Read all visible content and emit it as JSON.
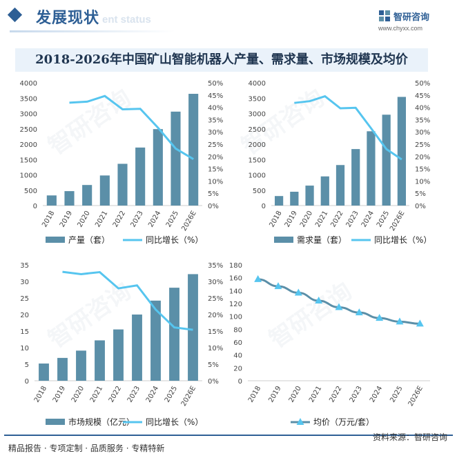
{
  "header": {
    "section_title": "发展现状",
    "section_subtitle": "ent status"
  },
  "brand": {
    "name": "智研咨询",
    "url": "www.chyxx.com"
  },
  "main_title": "2018-2026年中国矿山智能机器人产量、需求量、市场规模及均价",
  "watermark": "智研咨询",
  "footer": {
    "left": "精品报告 · 专项定制 · 品质服务 · 专精特新",
    "right": "资料来源：智研咨询"
  },
  "colors": {
    "bar": "#5b8fa8",
    "line": "#56c5ef",
    "marker_line": "#5b8fa8",
    "marker": "#56c5ef"
  },
  "chart_data": [
    {
      "id": "production",
      "type": "bar",
      "categories": [
        "2018",
        "2019",
        "2020",
        "2021",
        "2022",
        "2023",
        "2024",
        "2025",
        "2026E"
      ],
      "series": [
        {
          "name": "产量（套）",
          "type": "bar",
          "axis": "left",
          "values": [
            330,
            470,
            670,
            980,
            1360,
            1890,
            2490,
            3060,
            3640
          ]
        },
        {
          "name": "同比增长（%）",
          "type": "line",
          "axis": "right",
          "values": [
            null,
            41.9,
            42.3,
            44.6,
            39.2,
            39.4,
            31.7,
            23.2,
            18.9
          ]
        }
      ],
      "y_left": {
        "ticks": [
          "0",
          "500",
          "1000",
          "1500",
          "2000",
          "2500",
          "3000",
          "3500",
          "4000"
        ],
        "min": 0,
        "max": 4000
      },
      "y_right": {
        "ticks": [
          "0%",
          "5%",
          "10%",
          "15%",
          "20%",
          "25%",
          "30%",
          "35%",
          "40%",
          "45%",
          "50%"
        ],
        "min": 0,
        "max": 50
      }
    },
    {
      "id": "demand",
      "type": "bar",
      "categories": [
        "2018",
        "2019",
        "2020",
        "2021",
        "2022",
        "2023",
        "2024",
        "2025",
        "2026E"
      ],
      "series": [
        {
          "name": "需求量（套）",
          "type": "bar",
          "axis": "left",
          "values": [
            310,
            450,
            650,
            950,
            1320,
            1840,
            2420,
            2960,
            3540
          ]
        },
        {
          "name": "同比增长（%）",
          "type": "line",
          "axis": "right",
          "values": [
            null,
            41.8,
            42.5,
            44.5,
            39.6,
            39.8,
            31.5,
            23.0,
            18.8
          ]
        }
      ],
      "y_left": {
        "ticks": [
          "0",
          "500",
          "1000",
          "1500",
          "2000",
          "2500",
          "3000",
          "3500",
          "4000"
        ],
        "min": 0,
        "max": 4000
      },
      "y_right": {
        "ticks": [
          "0%",
          "5%",
          "10%",
          "15%",
          "20%",
          "25%",
          "30%",
          "35%",
          "40%",
          "45%",
          "50%"
        ],
        "min": 0,
        "max": 50
      }
    },
    {
      "id": "market",
      "type": "bar",
      "categories": [
        "2018",
        "2019",
        "2020",
        "2021",
        "2022",
        "2023",
        "2024",
        "2025",
        "2026E"
      ],
      "series": [
        {
          "name": "市场规模（亿元）",
          "type": "bar",
          "axis": "left",
          "values": [
            5.2,
            6.9,
            9.1,
            12.2,
            15.5,
            20.0,
            24.2,
            28.1,
            32.2
          ]
        },
        {
          "name": "同比增长（%）",
          "type": "line",
          "axis": "right",
          "values": [
            null,
            32.9,
            32.2,
            32.8,
            27.9,
            28.8,
            21.5,
            16.1,
            15.4
          ]
        }
      ],
      "y_left": {
        "ticks": [
          "0",
          "5",
          "10",
          "15",
          "20",
          "25",
          "30",
          "35"
        ],
        "min": 0,
        "max": 35
      },
      "y_right": {
        "ticks": [
          "0%",
          "5%",
          "10%",
          "15%",
          "20%",
          "25%",
          "30%",
          "35%"
        ],
        "min": 0,
        "max": 35
      }
    },
    {
      "id": "price",
      "type": "line",
      "categories": [
        "2018",
        "2019",
        "2020",
        "2021",
        "2022",
        "2023",
        "2024",
        "2025",
        "2026E"
      ],
      "series": [
        {
          "name": "均价（万元/套）",
          "type": "line-marker",
          "axis": "left",
          "values": [
            157.6,
            146.7,
            136.6,
            124.3,
            114.1,
            105.9,
            97.3,
            91.8,
            88.5
          ]
        }
      ],
      "y_left": {
        "ticks": [
          "0",
          "20",
          "40",
          "60",
          "80",
          "100",
          "120",
          "140",
          "160",
          "180"
        ],
        "min": 0,
        "max": 180
      }
    }
  ]
}
